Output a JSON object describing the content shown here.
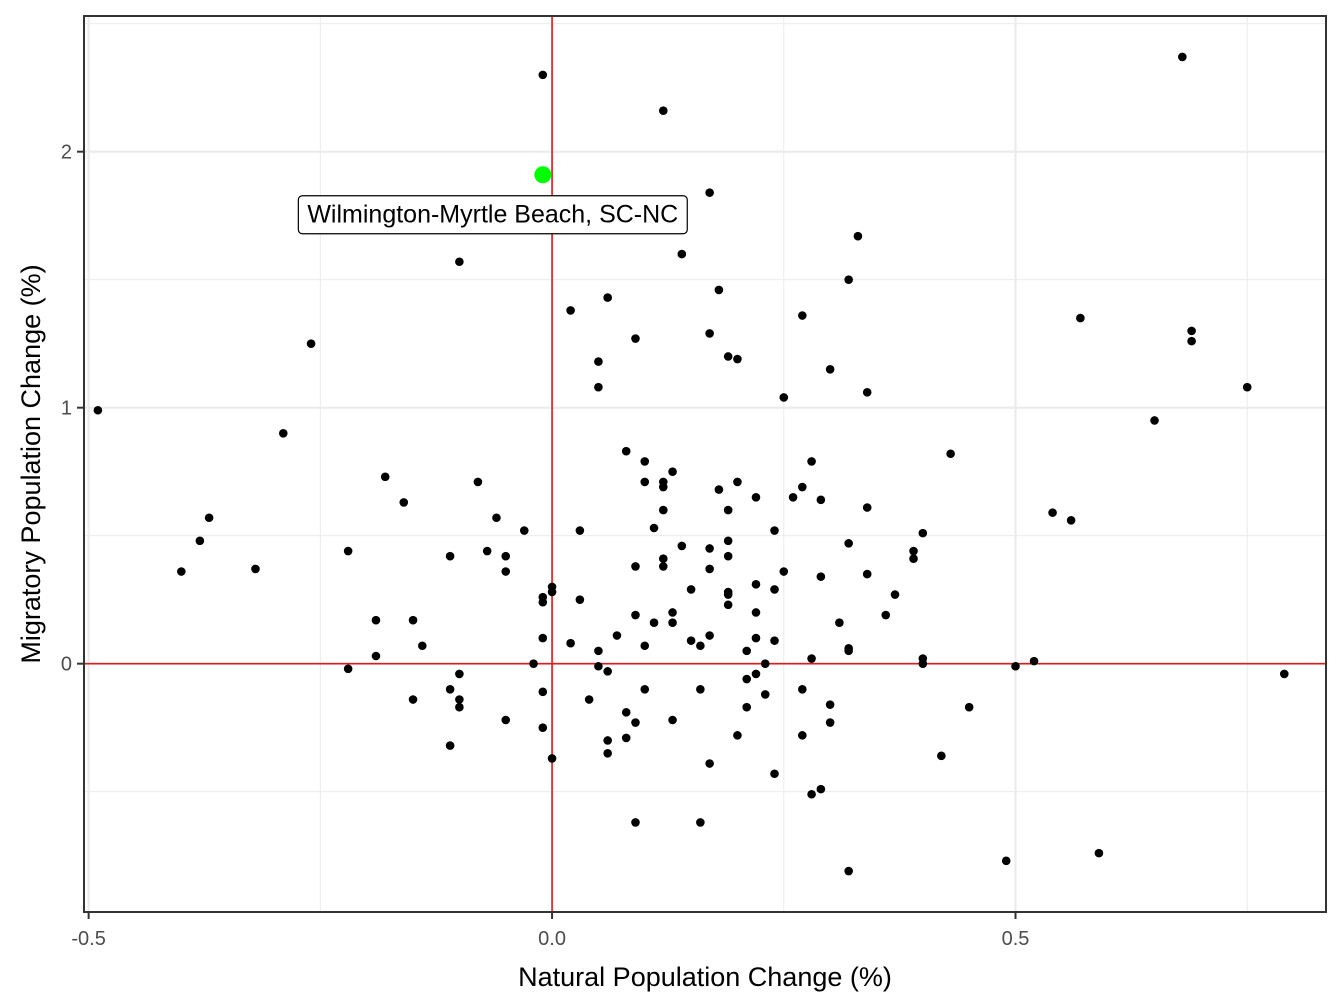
{
  "chart_data": {
    "type": "scatter",
    "xlabel": "Natural Population Change (%)",
    "ylabel": "Migratory Population Change (%)",
    "xlim": [
      -0.505,
      0.835
    ],
    "ylim": [
      -0.97,
      2.53
    ],
    "x_ticks": [
      -0.5,
      0.0,
      0.5
    ],
    "x_tick_labels": [
      "-0.5",
      "0.0",
      "0.5"
    ],
    "y_ticks": [
      0,
      1,
      2
    ],
    "y_tick_labels": [
      "0",
      "1",
      "2"
    ],
    "grid": true,
    "reference_lines": {
      "x": 0,
      "y": 0,
      "color": "#e31a1c"
    },
    "point_color": "#000000",
    "highlight": {
      "label": "Wilmington-Myrtle Beach, SC-NC",
      "x": -0.01,
      "y": 1.91,
      "color": "#00ff00"
    },
    "points": [
      [
        -0.01,
        2.3
      ],
      [
        0.12,
        2.16
      ],
      [
        0.68,
        2.37
      ],
      [
        0.17,
        1.84
      ],
      [
        0.33,
        1.67
      ],
      [
        0.14,
        1.6
      ],
      [
        -0.1,
        1.57
      ],
      [
        0.32,
        1.5
      ],
      [
        0.18,
        1.46
      ],
      [
        0.06,
        1.43
      ],
      [
        0.02,
        1.38
      ],
      [
        0.27,
        1.36
      ],
      [
        0.57,
        1.35
      ],
      [
        0.69,
        1.3
      ],
      [
        0.69,
        1.26
      ],
      [
        0.17,
        1.29
      ],
      [
        0.09,
        1.27
      ],
      [
        -0.26,
        1.25
      ],
      [
        0.19,
        1.2
      ],
      [
        0.2,
        1.19
      ],
      [
        0.05,
        1.18
      ],
      [
        0.3,
        1.15
      ],
      [
        0.05,
        1.08
      ],
      [
        0.75,
        1.08
      ],
      [
        0.34,
        1.06
      ],
      [
        0.25,
        1.04
      ],
      [
        -0.49,
        0.99
      ],
      [
        0.65,
        0.95
      ],
      [
        -0.29,
        0.9
      ],
      [
        0.08,
        0.83
      ],
      [
        0.43,
        0.82
      ],
      [
        0.1,
        0.79
      ],
      [
        0.28,
        0.79
      ],
      [
        0.13,
        0.75
      ],
      [
        -0.18,
        0.73
      ],
      [
        0.1,
        0.71
      ],
      [
        0.12,
        0.71
      ],
      [
        0.2,
        0.71
      ],
      [
        -0.08,
        0.71
      ],
      [
        0.12,
        0.69
      ],
      [
        0.27,
        0.69
      ],
      [
        0.18,
        0.68
      ],
      [
        0.26,
        0.65
      ],
      [
        0.22,
        0.65
      ],
      [
        -0.16,
        0.63
      ],
      [
        0.29,
        0.64
      ],
      [
        0.34,
        0.61
      ],
      [
        0.19,
        0.6
      ],
      [
        0.12,
        0.6
      ],
      [
        0.54,
        0.59
      ],
      [
        0.56,
        0.56
      ],
      [
        -0.37,
        0.57
      ],
      [
        -0.06,
        0.57
      ],
      [
        0.11,
        0.53
      ],
      [
        -0.03,
        0.52
      ],
      [
        0.03,
        0.52
      ],
      [
        0.24,
        0.52
      ],
      [
        0.4,
        0.51
      ],
      [
        -0.38,
        0.48
      ],
      [
        0.19,
        0.48
      ],
      [
        0.32,
        0.47
      ],
      [
        0.14,
        0.46
      ],
      [
        0.17,
        0.45
      ],
      [
        -0.22,
        0.44
      ],
      [
        -0.07,
        0.44
      ],
      [
        0.39,
        0.44
      ],
      [
        -0.11,
        0.42
      ],
      [
        -0.05,
        0.42
      ],
      [
        0.19,
        0.42
      ],
      [
        0.12,
        0.41
      ],
      [
        0.39,
        0.41
      ],
      [
        0.09,
        0.38
      ],
      [
        0.12,
        0.38
      ],
      [
        0.17,
        0.37
      ],
      [
        -0.4,
        0.36
      ],
      [
        -0.05,
        0.36
      ],
      [
        -0.32,
        0.37
      ],
      [
        0.25,
        0.36
      ],
      [
        0.34,
        0.35
      ],
      [
        0.29,
        0.34
      ],
      [
        0.22,
        0.31
      ],
      [
        0.24,
        0.29
      ],
      [
        0.0,
        0.3
      ],
      [
        0.15,
        0.29
      ],
      [
        0.0,
        0.28
      ],
      [
        0.19,
        0.28
      ],
      [
        0.19,
        0.27
      ],
      [
        0.37,
        0.27
      ],
      [
        -0.01,
        0.26
      ],
      [
        0.03,
        0.25
      ],
      [
        -0.01,
        0.24
      ],
      [
        0.19,
        0.23
      ],
      [
        0.13,
        0.2
      ],
      [
        0.22,
        0.2
      ],
      [
        0.36,
        0.19
      ],
      [
        0.09,
        0.19
      ],
      [
        -0.19,
        0.17
      ],
      [
        -0.15,
        0.17
      ],
      [
        0.11,
        0.16
      ],
      [
        0.13,
        0.16
      ],
      [
        0.31,
        0.16
      ],
      [
        0.07,
        0.11
      ],
      [
        0.17,
        0.11
      ],
      [
        -0.01,
        0.1
      ],
      [
        0.15,
        0.09
      ],
      [
        0.22,
        0.1
      ],
      [
        0.24,
        0.09
      ],
      [
        -0.14,
        0.07
      ],
      [
        0.02,
        0.08
      ],
      [
        0.16,
        0.07
      ],
      [
        0.1,
        0.07
      ],
      [
        0.32,
        0.06
      ],
      [
        0.32,
        0.05
      ],
      [
        0.05,
        0.05
      ],
      [
        0.21,
        0.05
      ],
      [
        -0.19,
        0.03
      ],
      [
        0.28,
        0.02
      ],
      [
        0.4,
        0.02
      ],
      [
        0.52,
        0.01
      ],
      [
        -0.02,
        0.0
      ],
      [
        0.23,
        0.0
      ],
      [
        0.4,
        0.0
      ],
      [
        0.05,
        -0.01
      ],
      [
        0.5,
        -0.01
      ],
      [
        -0.22,
        -0.02
      ],
      [
        0.06,
        -0.03
      ],
      [
        0.22,
        -0.04
      ],
      [
        0.79,
        -0.04
      ],
      [
        -0.1,
        -0.04
      ],
      [
        0.21,
        -0.06
      ],
      [
        -0.01,
        -0.11
      ],
      [
        -0.11,
        -0.1
      ],
      [
        0.1,
        -0.1
      ],
      [
        0.16,
        -0.1
      ],
      [
        0.27,
        -0.1
      ],
      [
        0.23,
        -0.12
      ],
      [
        -0.15,
        -0.14
      ],
      [
        -0.1,
        -0.14
      ],
      [
        0.04,
        -0.14
      ],
      [
        0.3,
        -0.16
      ],
      [
        -0.1,
        -0.17
      ],
      [
        0.21,
        -0.17
      ],
      [
        0.45,
        -0.17
      ],
      [
        0.08,
        -0.19
      ],
      [
        0.13,
        -0.22
      ],
      [
        -0.05,
        -0.22
      ],
      [
        0.09,
        -0.23
      ],
      [
        0.3,
        -0.23
      ],
      [
        -0.01,
        -0.25
      ],
      [
        0.08,
        -0.29
      ],
      [
        0.2,
        -0.28
      ],
      [
        0.27,
        -0.28
      ],
      [
        0.06,
        -0.3
      ],
      [
        -0.11,
        -0.32
      ],
      [
        0.06,
        -0.35
      ],
      [
        0.0,
        -0.37
      ],
      [
        0.42,
        -0.36
      ],
      [
        0.17,
        -0.39
      ],
      [
        0.24,
        -0.43
      ],
      [
        0.29,
        -0.49
      ],
      [
        0.28,
        -0.51
      ],
      [
        0.09,
        -0.62
      ],
      [
        0.16,
        -0.62
      ],
      [
        0.59,
        -0.74
      ],
      [
        0.49,
        -0.77
      ],
      [
        0.32,
        -0.81
      ]
    ]
  }
}
